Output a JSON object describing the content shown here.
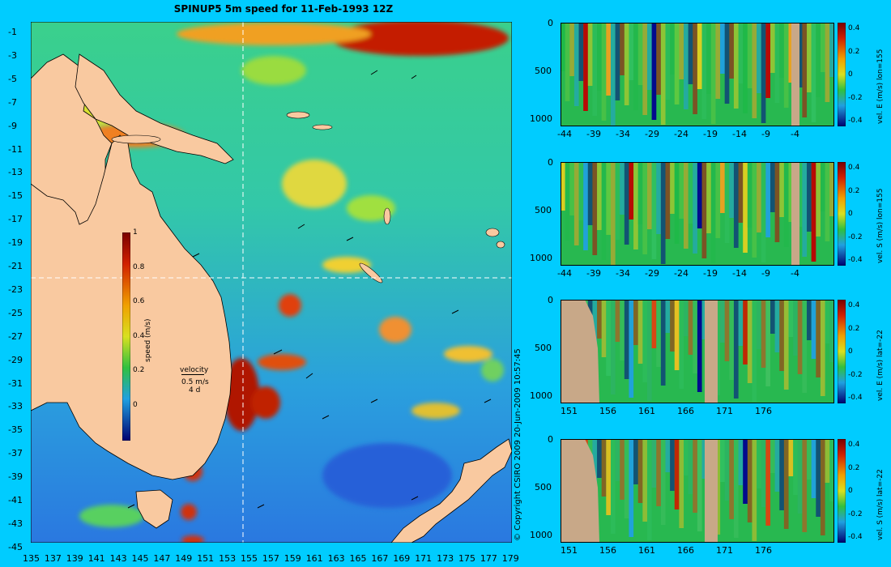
{
  "map": {
    "title": "SPINUP5 5m speed for 11-Feb-1993 12Z",
    "lat_ticks": [
      "-1",
      "-3",
      "-5",
      "-7",
      "-9",
      "-11",
      "-13",
      "-15",
      "-17",
      "-19",
      "-21",
      "-23",
      "-25",
      "-27",
      "-29",
      "-31",
      "-33",
      "-35",
      "-37",
      "-39",
      "-41",
      "-43",
      "-45"
    ],
    "lon_ticks": [
      "135",
      "137",
      "139",
      "141",
      "143",
      "145",
      "147",
      "149",
      "151",
      "153",
      "155",
      "157",
      "159",
      "161",
      "163",
      "165",
      "167",
      "169",
      "171",
      "173",
      "175",
      "177",
      "179"
    ],
    "colorbar": {
      "label": "speed (m/s)",
      "ticks": [
        "1",
        "0.8",
        "0.6",
        "0.4",
        "0.2",
        "0"
      ]
    },
    "velocity_legend": {
      "title": "velocity",
      "speed": "0.5 m/s",
      "duration": "4 d"
    },
    "section_lon": 155,
    "section_lat": -22
  },
  "copyright": "© Copyright CSIRO 2009   20-Jun-2009 10:57:45",
  "panels": [
    {
      "ylabel": "vel. E (m/s) lon=155",
      "x_ticks": [
        "-44",
        "-39",
        "-34",
        "-29",
        "-24",
        "-19",
        "-14",
        "-9",
        "-4"
      ],
      "y_ticks": [
        "0",
        "500",
        "1000"
      ],
      "cb_ticks": [
        "0.4",
        "0.2",
        "0",
        "-0.2",
        "-0.4"
      ]
    },
    {
      "ylabel": "vel. S (m/s) lon=155",
      "x_ticks": [
        "-44",
        "-39",
        "-34",
        "-29",
        "-24",
        "-19",
        "-14",
        "-9",
        "-4"
      ],
      "y_ticks": [
        "0",
        "500",
        "1000"
      ],
      "cb_ticks": [
        "0.4",
        "0.2",
        "0",
        "-0.2",
        "-0.4"
      ]
    },
    {
      "ylabel": "vel. E (m/s) lat=-22",
      "x_ticks": [
        "151",
        "156",
        "161",
        "166",
        "171",
        "176"
      ],
      "y_ticks": [
        "0",
        "500",
        "1000"
      ],
      "cb_ticks": [
        "0.4",
        "0.2",
        "0",
        "-0.2",
        "-0.4"
      ]
    },
    {
      "ylabel": "vel. S (m/s) lat=-22",
      "x_ticks": [
        "151",
        "156",
        "161",
        "166",
        "171",
        "176"
      ],
      "y_ticks": [
        "0",
        "500",
        "1000"
      ],
      "cb_ticks": [
        "0.4",
        "0.2",
        "0",
        "-0.2",
        "-0.4"
      ]
    }
  ],
  "colors": {
    "background": "#00ccff",
    "land": "#f9c9a0",
    "section_land": "#c8a888"
  }
}
